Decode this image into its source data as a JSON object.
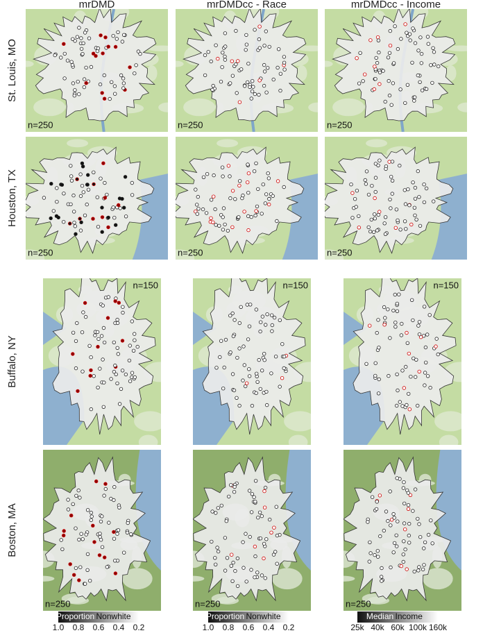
{
  "columns": [
    "mrDMD",
    "mrDMDcc - Race",
    "mrDMDcc - Income"
  ],
  "rows": [
    {
      "label": "St. Louis, MO",
      "n": [
        "n=250",
        "n=250",
        "n=250"
      ]
    },
    {
      "label": "Houston, TX",
      "n": [
        "n=250",
        "n=250",
        "n=250"
      ]
    },
    {
      "label": "Buffalo, NY",
      "n": [
        "n=150",
        "n=150",
        "n=150"
      ]
    },
    {
      "label": "Boston, MA",
      "n": [
        "n=250",
        "n=250",
        "n=250"
      ]
    }
  ],
  "legends": [
    {
      "left": "Proportion",
      "right": "Nonwhite",
      "ticks": [
        "1.0",
        "0.8",
        "0.6",
        "0.4",
        "0.2"
      ]
    },
    {
      "left": "Proportion",
      "right": "Nonwhite",
      "ticks": [
        "1.0",
        "0.8",
        "0.6",
        "0.4",
        "0.2"
      ]
    },
    {
      "left": "Median",
      "right": "Income",
      "ticks": [
        "25k",
        "40k",
        "60k",
        "100k",
        "160k"
      ]
    }
  ]
}
